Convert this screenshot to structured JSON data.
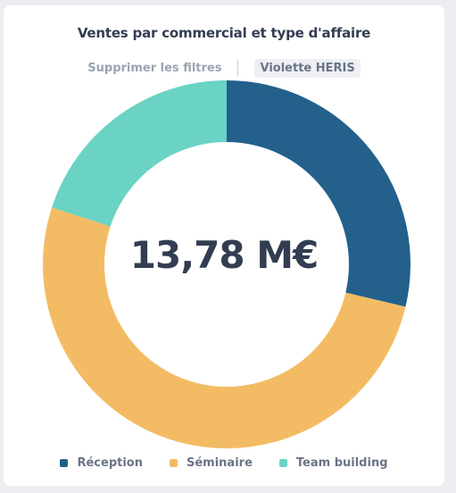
{
  "chart_data": {
    "type": "pie",
    "title": "Ventes par commercial et type d'affaire",
    "center_value": "13,78 M€",
    "series": [
      {
        "name": "Réception",
        "value": 28.7,
        "color": "#23608b"
      },
      {
        "name": "Séminaire",
        "value": 51.3,
        "color": "#f3bc64"
      },
      {
        "name": "Team building",
        "value": 20.0,
        "color": "#6ad3c4"
      }
    ],
    "legend_position": "bottom"
  },
  "filters": {
    "clear_label": "Supprimer les filtres",
    "active_filter": "Violette HERIS"
  }
}
